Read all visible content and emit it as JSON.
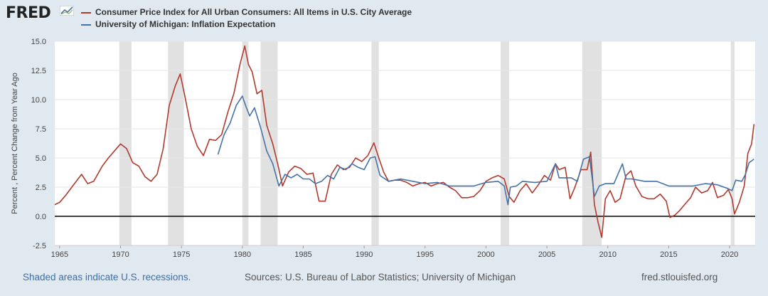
{
  "header": {
    "logo": "FRED",
    "logo_icon": "fred-chart-icon"
  },
  "footer": {
    "recessions_note": "Shaded areas indicate U.S. recessions.",
    "sources": "Sources: U.S. Bureau of Labor Statistics; University of Michigan",
    "site": "fred.stlouisfed.org"
  },
  "chart_data": {
    "type": "line",
    "title": "",
    "xlabel": "",
    "ylabel": "Percent , Percent Change from Year Ago",
    "xlim": [
      1964.6,
      2022.1
    ],
    "ylim": [
      -2.5,
      15.0
    ],
    "yticks": [
      "-2.5",
      "0.0",
      "2.5",
      "5.0",
      "7.5",
      "10.0",
      "12.5",
      "15.0"
    ],
    "xticks": [
      "1965",
      "1970",
      "1975",
      "1980",
      "1985",
      "1990",
      "1995",
      "2000",
      "2005",
      "2010",
      "2015",
      "2020"
    ],
    "grid": "horizontal",
    "legend_placement": "top-left",
    "zero_line": true,
    "recessions": [
      [
        1969.9,
        1970.9
      ],
      [
        1973.9,
        1975.2
      ],
      [
        1980.0,
        1980.5
      ],
      [
        1981.5,
        1982.9
      ],
      [
        1990.6,
        1991.2
      ],
      [
        2001.2,
        2001.9
      ],
      [
        2007.9,
        2009.5
      ],
      [
        2020.1,
        2020.4
      ]
    ],
    "series": [
      {
        "name": "Consumer Price Index for All Urban Consumers: All Items in U.S. City Average",
        "color": "#b03a2e",
        "x": [
          1964.6,
          1965.0,
          1965.5,
          1966.0,
          1966.8,
          1967.3,
          1967.8,
          1968.5,
          1969.0,
          1969.5,
          1970.0,
          1970.5,
          1971.0,
          1971.5,
          1972.0,
          1972.5,
          1973.0,
          1973.5,
          1974.0,
          1974.5,
          1974.9,
          1975.3,
          1975.8,
          1976.3,
          1976.8,
          1977.3,
          1977.8,
          1978.3,
          1978.8,
          1979.3,
          1979.8,
          1980.2,
          1980.5,
          1980.8,
          1981.2,
          1981.6,
          1982.0,
          1982.5,
          1982.9,
          1983.3,
          1983.8,
          1984.3,
          1984.8,
          1985.3,
          1985.8,
          1986.3,
          1986.8,
          1987.3,
          1987.8,
          1988.3,
          1988.8,
          1989.3,
          1989.8,
          1990.3,
          1990.8,
          1991.2,
          1991.6,
          1992.0,
          1992.5,
          1993.0,
          1993.5,
          1994.0,
          1994.5,
          1995.0,
          1995.5,
          1996.0,
          1996.5,
          1997.0,
          1997.5,
          1998.0,
          1998.5,
          1999.0,
          1999.5,
          2000.0,
          2000.5,
          2001.0,
          2001.5,
          2001.9,
          2002.3,
          2002.8,
          2003.3,
          2003.8,
          2004.3,
          2004.8,
          2005.3,
          2005.7,
          2006.0,
          2006.5,
          2006.9,
          2007.3,
          2007.8,
          2008.3,
          2008.6,
          2008.9,
          2009.2,
          2009.5,
          2009.8,
          2010.2,
          2010.6,
          2011.0,
          2011.5,
          2011.9,
          2012.3,
          2012.8,
          2013.3,
          2013.8,
          2014.3,
          2014.8,
          2015.1,
          2015.5,
          2015.9,
          2016.3,
          2016.8,
          2017.2,
          2017.7,
          2018.2,
          2018.6,
          2019.0,
          2019.5,
          2019.9,
          2020.2,
          2020.4,
          2020.8,
          2021.2,
          2021.5,
          2021.8,
          2022.0
        ],
        "y": [
          1.0,
          1.2,
          1.8,
          2.5,
          3.6,
          2.8,
          3.0,
          4.3,
          5.0,
          5.6,
          6.2,
          5.8,
          4.6,
          4.3,
          3.4,
          3.0,
          3.6,
          5.8,
          9.5,
          11.2,
          12.2,
          10.2,
          7.5,
          6.0,
          5.2,
          6.6,
          6.5,
          7.0,
          8.9,
          10.5,
          13.0,
          14.6,
          13.0,
          12.4,
          10.5,
          10.8,
          7.8,
          6.2,
          4.5,
          2.6,
          3.8,
          4.3,
          4.1,
          3.6,
          3.7,
          1.3,
          1.3,
          3.6,
          4.4,
          4.0,
          4.2,
          5.0,
          4.7,
          5.2,
          6.3,
          5.0,
          3.8,
          3.0,
          3.1,
          3.1,
          2.9,
          2.6,
          2.8,
          2.9,
          2.6,
          2.8,
          2.9,
          2.5,
          2.2,
          1.6,
          1.6,
          1.7,
          2.2,
          3.0,
          3.3,
          3.5,
          3.2,
          1.7,
          1.2,
          2.2,
          2.8,
          2.0,
          2.7,
          3.5,
          3.1,
          4.5,
          4.0,
          4.2,
          1.5,
          2.5,
          4.0,
          4.0,
          5.5,
          1.0,
          -0.5,
          -1.8,
          1.5,
          2.2,
          1.2,
          1.5,
          3.5,
          3.9,
          2.6,
          1.7,
          1.5,
          1.5,
          1.9,
          1.3,
          -0.1,
          0.1,
          0.5,
          1.0,
          1.6,
          2.5,
          2.0,
          2.2,
          2.9,
          1.6,
          1.8,
          2.3,
          1.5,
          0.2,
          1.2,
          2.6,
          5.4,
          6.2,
          7.9
        ]
      },
      {
        "name": "University of Michigan: Inflation Expectation",
        "color": "#4572a7",
        "x": [
          1978.0,
          1978.5,
          1979.0,
          1979.5,
          1980.0,
          1980.3,
          1980.6,
          1981.0,
          1981.5,
          1982.0,
          1982.5,
          1983.0,
          1983.5,
          1984.0,
          1984.5,
          1985.0,
          1985.5,
          1986.0,
          1986.5,
          1987.0,
          1987.5,
          1988.0,
          1988.5,
          1989.0,
          1989.5,
          1990.0,
          1990.5,
          1990.9,
          1991.3,
          1992.0,
          1993.0,
          1994.0,
          1995.0,
          1996.0,
          1997.0,
          1998.0,
          1999.0,
          2000.0,
          2001.0,
          2001.5,
          2001.8,
          2002.0,
          2002.5,
          2003.0,
          2004.0,
          2005.0,
          2005.7,
          2006.0,
          2007.0,
          2007.5,
          2008.0,
          2008.5,
          2008.9,
          2009.3,
          2009.8,
          2010.5,
          2011.2,
          2011.5,
          2012.0,
          2013.0,
          2014.0,
          2015.0,
          2016.0,
          2017.0,
          2018.0,
          2019.0,
          2019.8,
          2020.2,
          2020.5,
          2021.0,
          2021.3,
          2021.6,
          2022.0
        ],
        "y": [
          5.3,
          7.0,
          8.0,
          9.5,
          10.3,
          9.4,
          8.6,
          9.3,
          7.6,
          5.6,
          4.5,
          2.6,
          3.6,
          3.3,
          3.6,
          3.2,
          3.2,
          2.8,
          3.0,
          3.5,
          3.2,
          4.2,
          4.0,
          4.5,
          4.2,
          4.0,
          5.0,
          5.1,
          3.5,
          3.0,
          3.2,
          3.0,
          2.8,
          2.9,
          2.6,
          2.6,
          2.6,
          2.9,
          3.0,
          2.6,
          1.0,
          2.5,
          2.6,
          3.0,
          2.9,
          3.0,
          4.5,
          3.3,
          3.3,
          3.0,
          4.9,
          5.1,
          1.7,
          2.6,
          2.8,
          2.8,
          4.5,
          3.2,
          3.2,
          3.0,
          3.0,
          2.6,
          2.6,
          2.6,
          2.8,
          2.7,
          2.4,
          2.2,
          3.1,
          3.0,
          3.6,
          4.6,
          4.9
        ]
      }
    ]
  }
}
